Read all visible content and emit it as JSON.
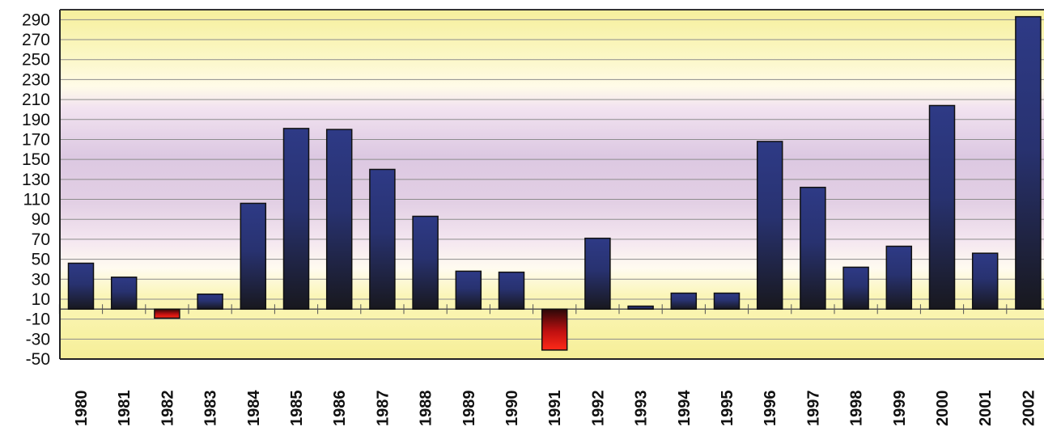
{
  "chart_data": {
    "type": "bar",
    "title": "",
    "xlabel": "",
    "ylabel": "",
    "ylim": [
      -50,
      300
    ],
    "yticks": [
      290,
      270,
      250,
      230,
      210,
      190,
      170,
      150,
      130,
      110,
      90,
      70,
      50,
      30,
      10,
      -10,
      -30,
      -50
    ],
    "grid": true,
    "legend": "none",
    "categories": [
      "1980",
      "1981",
      "1982",
      "1983",
      "1984",
      "1985",
      "1986",
      "1987",
      "1988",
      "1989",
      "1990",
      "1991",
      "1992",
      "1993",
      "1994",
      "1995",
      "1996",
      "1997",
      "1998",
      "1999",
      "2000",
      "2001",
      "2002"
    ],
    "values": [
      46,
      32,
      -9,
      15,
      106,
      181,
      180,
      140,
      93,
      38,
      37,
      -41,
      71,
      3,
      16,
      16,
      168,
      122,
      42,
      63,
      204,
      56,
      293
    ],
    "colors": {
      "positive_top": "#2e3a86",
      "positive_bottom": "#1a1a22",
      "negative_top": "#3a0a0a",
      "negative_bottom": "#ff1a10",
      "plot_yellow": "#fbf6a8",
      "plot_violet": "#dcc8e4"
    }
  }
}
